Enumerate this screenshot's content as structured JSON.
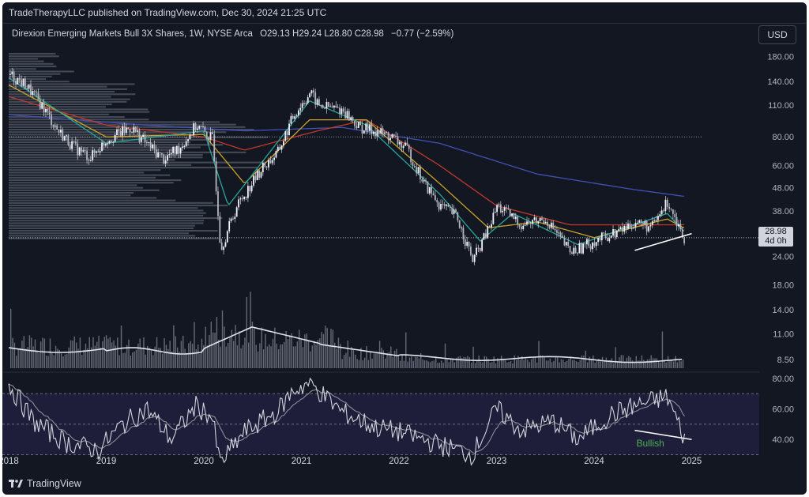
{
  "header": {
    "published": "TradeTherapyLLC published on TradingView.com, Dec 30, 2024 21:25 UTC"
  },
  "legend": {
    "symbol": "Direxion Emerging Markets Bull 3X Shares, 1W, NYSE Arca",
    "open_label": "O",
    "open": "29.13",
    "high_label": "H",
    "high": "29.24",
    "low_label": "L",
    "low": "28.80",
    "close_label": "C",
    "close": "28.98",
    "change": "−0.77 (−2.59%)"
  },
  "currency_button": "USD",
  "price_tag": {
    "price": "28.98",
    "countdown": "4d 0h"
  },
  "annotation": {
    "text": "Bullish",
    "color": "#4caf50"
  },
  "footer": {
    "brand": "TradingView"
  },
  "colors": {
    "background": "#131722",
    "candle": "#d1d4dc",
    "ma_blue": "#3f51b5",
    "ma_red": "#c0392b",
    "ma_orange": "#c9a227",
    "ma_teal": "#26a69a",
    "rsi_line": "#d1d4dc",
    "rsi_band": "#1f1e3a"
  },
  "chart_data": [
    {
      "type": "candlestick",
      "scale": "log",
      "x_ticks": [
        "2018",
        "2019",
        "2020",
        "2021",
        "2022",
        "2023",
        "2024",
        "2025"
      ],
      "y_ticks": [
        "180.00",
        "140.00",
        "110.00",
        "80.00",
        "60.00",
        "48.00",
        "38.00",
        "24.00",
        "18.00",
        "14.00",
        "11.00",
        "8.50"
      ],
      "ylim": [
        7.6,
        205
      ],
      "close_path": [
        [
          "2018-01",
          150
        ],
        [
          "2018-03",
          135
        ],
        [
          "2018-05",
          110
        ],
        [
          "2018-07",
          85
        ],
        [
          "2018-09",
          72
        ],
        [
          "2018-11",
          65
        ],
        [
          "2019-01",
          78
        ],
        [
          "2019-04",
          88
        ],
        [
          "2019-06",
          74
        ],
        [
          "2019-08",
          64
        ],
        [
          "2019-10",
          72
        ],
        [
          "2019-12",
          90
        ],
        [
          "2020-02",
          78
        ],
        [
          "2020-03",
          26
        ],
        [
          "2020-05",
          40
        ],
        [
          "2020-08",
          58
        ],
        [
          "2020-10",
          68
        ],
        [
          "2020-12",
          100
        ],
        [
          "2021-02",
          125
        ],
        [
          "2021-03",
          110
        ],
        [
          "2021-06",
          105
        ],
        [
          "2021-08",
          88
        ],
        [
          "2021-10",
          85
        ],
        [
          "2021-12",
          80
        ],
        [
          "2022-02",
          70
        ],
        [
          "2022-04",
          50
        ],
        [
          "2022-06",
          40
        ],
        [
          "2022-08",
          36
        ],
        [
          "2022-10",
          23
        ],
        [
          "2022-12",
          32
        ],
        [
          "2023-01",
          40
        ],
        [
          "2023-04",
          33
        ],
        [
          "2023-07",
          35
        ],
        [
          "2023-10",
          25
        ],
        [
          "2024-01",
          28
        ],
        [
          "2024-04",
          31
        ],
        [
          "2024-06",
          34
        ],
        [
          "2024-08",
          32
        ],
        [
          "2024-10",
          42
        ],
        [
          "2024-12",
          29
        ]
      ],
      "moving_averages": [
        {
          "name": "blue",
          "color": "#3f51b5",
          "path": [
            [
              "2018-01",
              100
            ],
            [
              "2019-06",
              90
            ],
            [
              "2020-06",
              85
            ],
            [
              "2021-06",
              88
            ],
            [
              "2022-06",
              75
            ],
            [
              "2023-06",
              55
            ],
            [
              "2024-06",
              47
            ],
            [
              "2024-12",
              44
            ]
          ]
        },
        {
          "name": "red",
          "color": "#c0392b",
          "path": [
            [
              "2018-01",
              120
            ],
            [
              "2019-01",
              90
            ],
            [
              "2020-01",
              80
            ],
            [
              "2020-06",
              70
            ],
            [
              "2021-03",
              85
            ],
            [
              "2021-09",
              95
            ],
            [
              "2022-06",
              60
            ],
            [
              "2023-01",
              40
            ],
            [
              "2023-10",
              33
            ],
            [
              "2024-06",
              33
            ],
            [
              "2024-12",
              33
            ]
          ]
        },
        {
          "name": "orange",
          "color": "#c9a227",
          "path": [
            [
              "2018-01",
              135
            ],
            [
              "2019-01",
              80
            ],
            [
              "2020-01",
              82
            ],
            [
              "2020-06",
              50
            ],
            [
              "2021-02",
              95
            ],
            [
              "2021-09",
              95
            ],
            [
              "2022-06",
              50
            ],
            [
              "2022-12",
              32
            ],
            [
              "2023-06",
              34
            ],
            [
              "2024-01",
              29
            ],
            [
              "2024-10",
              35
            ],
            [
              "2024-12",
              32
            ]
          ]
        },
        {
          "name": "teal",
          "color": "#26a69a",
          "path": [
            [
              "2018-01",
              145
            ],
            [
              "2019-01",
              75
            ],
            [
              "2020-01",
              85
            ],
            [
              "2020-04",
              40
            ],
            [
              "2021-02",
              115
            ],
            [
              "2021-09",
              90
            ],
            [
              "2022-06",
              45
            ],
            [
              "2022-11",
              28
            ],
            [
              "2023-03",
              37
            ],
            [
              "2023-11",
              27
            ],
            [
              "2024-10",
              37
            ],
            [
              "2024-12",
              31
            ]
          ]
        }
      ],
      "trendline": {
        "from": [
          "2024-06",
          25.5
        ],
        "to": [
          "2025-01",
          30.2
        ]
      },
      "price_line": 28.98,
      "volume_profile": true,
      "volume": "bars with moving average",
      "horizontal_line": 80
    },
    {
      "type": "line",
      "name": "RSI",
      "y_ticks": [
        "80.00",
        "60.00",
        "40.00"
      ],
      "ylim": [
        22,
        82
      ],
      "bands": [
        30,
        50,
        70
      ],
      "path": [
        [
          "2018-01",
          76
        ],
        [
          "2018-04",
          52
        ],
        [
          "2018-08",
          38
        ],
        [
          "2018-12",
          33
        ],
        [
          "2019-03",
          50
        ],
        [
          "2019-06",
          60
        ],
        [
          "2019-09",
          40
        ],
        [
          "2019-12",
          62
        ],
        [
          "2020-02",
          55
        ],
        [
          "2020-03",
          24
        ],
        [
          "2020-06",
          45
        ],
        [
          "2020-10",
          58
        ],
        [
          "2020-12",
          72
        ],
        [
          "2021-02",
          77
        ],
        [
          "2021-06",
          58
        ],
        [
          "2021-10",
          48
        ],
        [
          "2022-01",
          45
        ],
        [
          "2022-05",
          38
        ],
        [
          "2022-10",
          30
        ],
        [
          "2023-01",
          60
        ],
        [
          "2023-04",
          46
        ],
        [
          "2023-08",
          52
        ],
        [
          "2023-11",
          40
        ],
        [
          "2024-03",
          56
        ],
        [
          "2024-06",
          62
        ],
        [
          "2024-10",
          68
        ],
        [
          "2024-12",
          42
        ]
      ],
      "divergence_line": {
        "from": [
          "2024-06",
          46
        ],
        "to": [
          "2025-01",
          40
        ]
      }
    }
  ]
}
